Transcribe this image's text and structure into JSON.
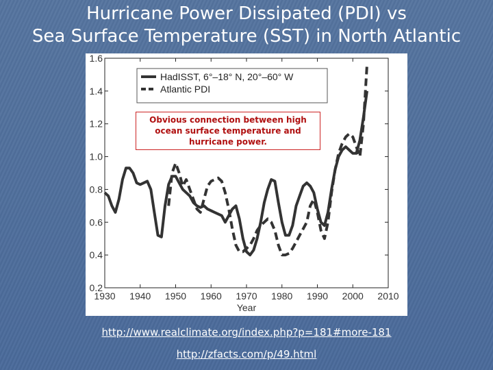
{
  "slide": {
    "title_line1": "Hurricane Power Dissipated (PDI) vs",
    "title_line2": "Sea Surface Temperature (SST) in North Atlantic"
  },
  "annotation": {
    "line1": "Obvious connection between high",
    "line2": "ocean surface temperature and",
    "line3": "hurricane power."
  },
  "links": [
    "http://www.realclimate.org/index.php?p=181#more-181",
    "http://zfacts.com/p/49.html"
  ],
  "colors": {
    "background": "#4f6f9f",
    "line": "#333333",
    "annotation": "#b01010"
  },
  "chart_data": {
    "type": "line",
    "xlabel": "Year",
    "ylabel": "",
    "xlim": [
      1930,
      2010
    ],
    "ylim": [
      0.2,
      1.6
    ],
    "x_ticks": [
      1930,
      1940,
      1950,
      1960,
      1970,
      1980,
      1990,
      2000,
      2010
    ],
    "y_ticks": [
      0.2,
      0.4,
      0.6,
      0.8,
      1.0,
      1.2,
      1.4,
      1.6
    ],
    "y_tick_labels": [
      "0.2",
      "0.4",
      "0.6",
      "0.8",
      "1.0",
      "1.2",
      "1.4",
      "1.6"
    ],
    "legend_position": "top-left",
    "series": [
      {
        "name": "HadISST, 6°–18° N, 20°–60° W",
        "style": "solid",
        "x": [
          1930,
          1931,
          1932,
          1933,
          1934,
          1935,
          1936,
          1937,
          1938,
          1939,
          1940,
          1941,
          1942,
          1943,
          1944,
          1945,
          1946,
          1947,
          1948,
          1949,
          1950,
          1951,
          1952,
          1953,
          1954,
          1955,
          1956,
          1957,
          1958,
          1959,
          1960,
          1961,
          1962,
          1963,
          1964,
          1965,
          1966,
          1967,
          1968,
          1969,
          1970,
          1971,
          1972,
          1973,
          1974,
          1975,
          1976,
          1977,
          1978,
          1979,
          1980,
          1981,
          1982,
          1983,
          1984,
          1985,
          1986,
          1987,
          1988,
          1989,
          1990,
          1991,
          1992,
          1993,
          1994,
          1995,
          1996,
          1997,
          1998,
          1999,
          2000,
          2001,
          2002,
          2003,
          2004
        ],
        "values": [
          0.78,
          0.76,
          0.7,
          0.66,
          0.74,
          0.86,
          0.93,
          0.93,
          0.9,
          0.84,
          0.83,
          0.84,
          0.85,
          0.8,
          0.66,
          0.52,
          0.51,
          0.7,
          0.83,
          0.88,
          0.88,
          0.84,
          0.8,
          0.78,
          0.76,
          0.72,
          0.7,
          0.69,
          0.7,
          0.68,
          0.67,
          0.66,
          0.65,
          0.64,
          0.6,
          0.64,
          0.68,
          0.7,
          0.62,
          0.5,
          0.42,
          0.4,
          0.43,
          0.5,
          0.6,
          0.72,
          0.8,
          0.86,
          0.85,
          0.72,
          0.6,
          0.52,
          0.52,
          0.58,
          0.7,
          0.76,
          0.82,
          0.84,
          0.82,
          0.78,
          0.68,
          0.6,
          0.58,
          0.66,
          0.8,
          0.92,
          1.0,
          1.04,
          1.06,
          1.04,
          1.02,
          1.02,
          1.1,
          1.24,
          1.4
        ]
      },
      {
        "name": "Atlantic PDI",
        "style": "dashed",
        "x": [
          1930,
          1931,
          1932,
          1933,
          1934,
          1935,
          1936,
          1937,
          1938,
          1939,
          1940,
          1941,
          1942,
          1943,
          1944,
          1945,
          1946,
          1947,
          1948,
          1949,
          1950,
          1951,
          1952,
          1953,
          1954,
          1955,
          1956,
          1957,
          1958,
          1959,
          1960,
          1961,
          1962,
          1963,
          1964,
          1965,
          1966,
          1967,
          1968,
          1969,
          1970,
          1971,
          1972,
          1973,
          1974,
          1975,
          1976,
          1977,
          1978,
          1979,
          1980,
          1981,
          1982,
          1983,
          1984,
          1985,
          1986,
          1987,
          1988,
          1989,
          1990,
          1991,
          1992,
          1993,
          1994,
          1995,
          1996,
          1997,
          1998,
          1999,
          2000,
          2001,
          2002,
          2003,
          2004
        ],
        "values": [
          null,
          null,
          null,
          null,
          null,
          null,
          null,
          null,
          null,
          null,
          null,
          null,
          null,
          null,
          null,
          null,
          null,
          null,
          0.7,
          0.9,
          0.96,
          0.9,
          0.82,
          0.86,
          0.8,
          0.74,
          0.68,
          0.66,
          0.74,
          0.82,
          0.85,
          0.86,
          0.87,
          0.85,
          0.78,
          0.68,
          0.56,
          0.46,
          0.42,
          0.42,
          0.44,
          0.46,
          0.5,
          0.55,
          0.58,
          0.6,
          0.62,
          0.6,
          0.55,
          0.46,
          0.4,
          0.4,
          0.41,
          0.44,
          0.48,
          0.52,
          0.56,
          0.6,
          0.7,
          0.74,
          0.66,
          0.55,
          0.5,
          0.6,
          0.78,
          0.92,
          1.02,
          1.08,
          1.12,
          1.14,
          1.12,
          1.06,
          1.0,
          1.2,
          1.56
        ]
      }
    ]
  }
}
